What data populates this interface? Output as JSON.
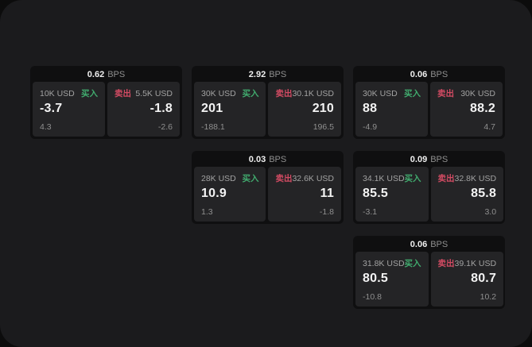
{
  "labels": {
    "bps": "BPS",
    "buy": "买入",
    "sell": "卖出"
  },
  "colors": {
    "page_bg": "#0c0c0c",
    "window_bg": "#1b1b1d",
    "card_bg": "#0f0f10",
    "panel_bg": "#242426",
    "buy_green": "#41ab6e",
    "sell_red": "#d34b63",
    "value_white": "#f3f3f3",
    "muted_gray": "#8f8f8f"
  },
  "cards": [
    {
      "bps": "0.62",
      "grid": {
        "row": 1,
        "col": 1
      },
      "buy": {
        "amount": "10K USD",
        "value": "-3.7",
        "sub": "4.3"
      },
      "sell": {
        "amount": "5.5K USD",
        "value": "-1.8",
        "sub": "-2.6"
      }
    },
    {
      "bps": "2.92",
      "grid": {
        "row": 1,
        "col": 2
      },
      "buy": {
        "amount": "30K USD",
        "value": "201",
        "sub": "-188.1"
      },
      "sell": {
        "amount": "30.1K USD",
        "value": "210",
        "sub": "196.5"
      }
    },
    {
      "bps": "0.06",
      "grid": {
        "row": 1,
        "col": 3
      },
      "buy": {
        "amount": "30K USD",
        "value": "88",
        "sub": "-4.9"
      },
      "sell": {
        "amount": "30K USD",
        "value": "88.2",
        "sub": "4.7"
      }
    },
    {
      "bps": "0.03",
      "grid": {
        "row": 2,
        "col": 2
      },
      "buy": {
        "amount": "28K USD",
        "value": "10.9",
        "sub": "1.3"
      },
      "sell": {
        "amount": "32.6K USD",
        "value": "11",
        "sub": "-1.8"
      }
    },
    {
      "bps": "0.09",
      "grid": {
        "row": 2,
        "col": 3
      },
      "buy": {
        "amount": "34.1K USD",
        "value": "85.5",
        "sub": "-3.1"
      },
      "sell": {
        "amount": "32.8K USD",
        "value": "85.8",
        "sub": "3.0"
      }
    },
    {
      "bps": "0.06",
      "grid": {
        "row": 3,
        "col": 3
      },
      "buy": {
        "amount": "31.8K USD",
        "value": "80.5",
        "sub": "-10.8"
      },
      "sell": {
        "amount": "39.1K USD",
        "value": "80.7",
        "sub": "10.2"
      }
    }
  ]
}
